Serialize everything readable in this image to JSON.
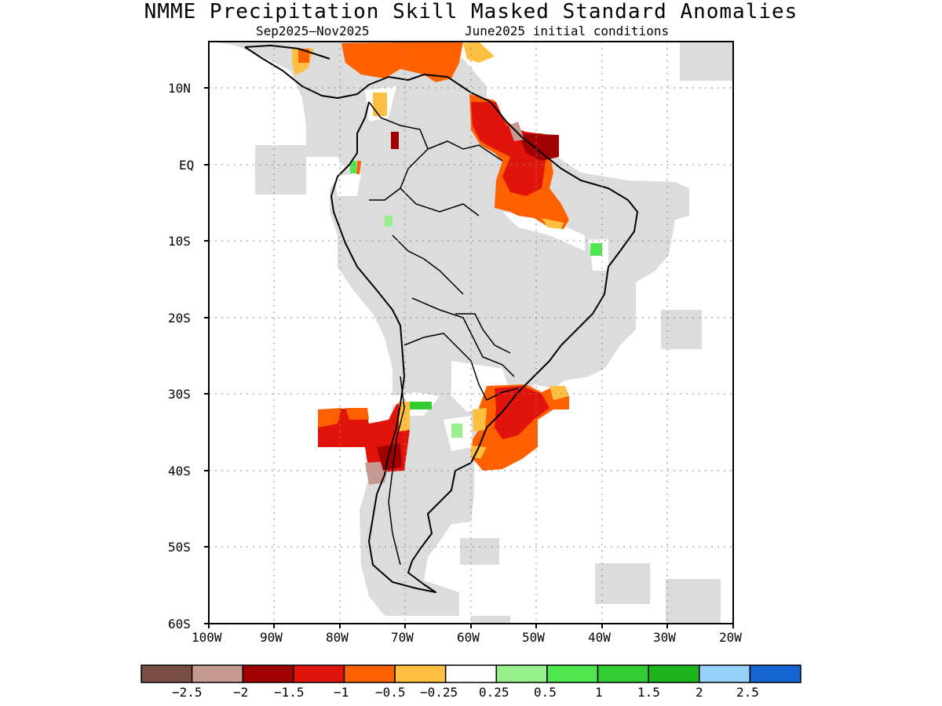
{
  "title": "NMME Precipitation Skill Masked Standard Anomalies",
  "period": "Sep2025–Nov2025",
  "ic": "June2025 initial conditions",
  "lat_labels": [
    "10N",
    "EQ",
    "10S",
    "20S",
    "30S",
    "40S",
    "50S",
    "60S"
  ],
  "lon_labels": [
    "100W",
    "90W",
    "80W",
    "70W",
    "60W",
    "50W",
    "40W",
    "30W",
    "20W"
  ],
  "map_extent": {
    "lon_min": -100,
    "lon_max": -20,
    "lat_min": -60,
    "lat_max": 16
  },
  "colorbar": {
    "colors": [
      "#7a4e45",
      "#c79a91",
      "#a00000",
      "#e0140a",
      "#ff6100",
      "#ffbf40",
      "#ffffff",
      "#96f08c",
      "#50e650",
      "#32cd32",
      "#1eb41e",
      "#96d2fa",
      "#1464d2"
    ],
    "labels": [
      "−2.5",
      "−2",
      "−1.5",
      "−1",
      "−0.5",
      "−0.25",
      "0.25",
      "0.5",
      "1",
      "1.5",
      "2",
      "2.5"
    ]
  },
  "skill_mask_color": "#dcdcdc"
}
